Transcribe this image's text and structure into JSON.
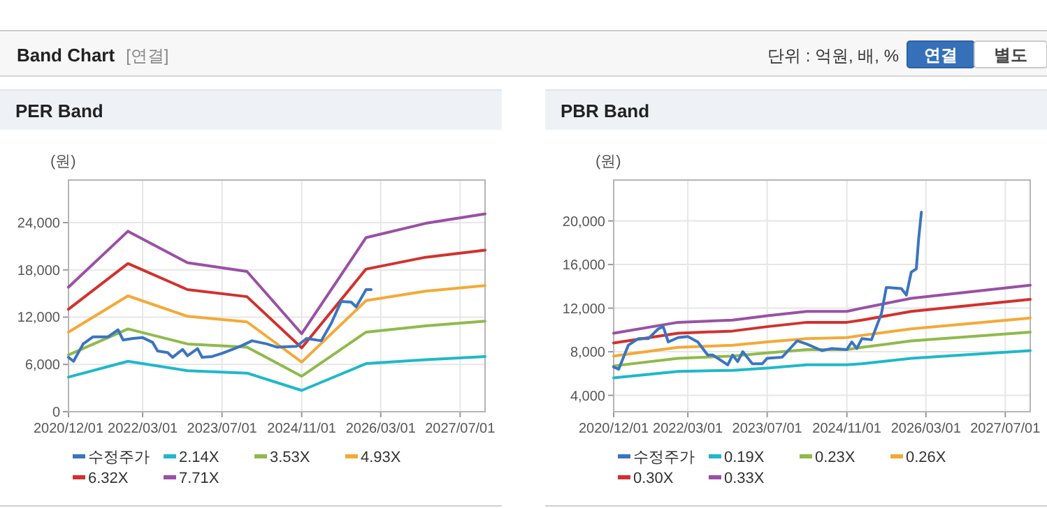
{
  "chart_data": [
    {
      "type": "other",
      "title": "Band Chart",
      "annotations": [
        "[연결]",
        "단위 : 억원, 배, %",
        "연결",
        "별도"
      ]
    },
    {
      "type": "line",
      "title": "PER Band",
      "ylabel": "(원)",
      "xlim": [
        "2020-12-01",
        "2027-12-01"
      ],
      "ylim": [
        0,
        29400
      ],
      "xticks": [
        {
          "value": "2020-12-01",
          "label": "2020/12/01"
        },
        {
          "value": "2022-03-01",
          "label": "2022/03/01"
        },
        {
          "value": "2023-07-01",
          "label": "2023/07/01"
        },
        {
          "value": "2024-11-01",
          "label": "2024/11/01"
        },
        {
          "value": "2026-03-01",
          "label": "2026/03/01"
        },
        {
          "value": "2027-07-01",
          "label": "2027/07/01"
        }
      ],
      "yticks": [
        0,
        {
          "value": 6000,
          "label": "6,000"
        },
        {
          "value": 12000,
          "label": "12,000"
        },
        {
          "value": 18000,
          "label": "18,000"
        },
        {
          "value": 24000,
          "label": "24,000"
        }
      ],
      "grid": true,
      "legend": "bottom",
      "series": [
        {
          "name": "수정주가",
          "color": "#3b74c2",
          "x": [
            "2020-12",
            "2021-01",
            "2021-03",
            "2021-05",
            "2021-08",
            "2021-10",
            "2021-11",
            "2022-01",
            "2022-03",
            "2022-05",
            "2022-06",
            "2022-08",
            "2022-09",
            "2022-11",
            "2022-12",
            "2023-02",
            "2023-03",
            "2023-05",
            "2023-07",
            "2023-09",
            "2023-11",
            "2024-01",
            "2024-04",
            "2024-06",
            "2024-10",
            "2024-12",
            "2025-03",
            "2025-05",
            "2025-07",
            "2025-09",
            "2025-10",
            "2025-12",
            "2026-01"
          ],
          "values": [
            6900,
            6400,
            8600,
            9500,
            9500,
            10400,
            9100,
            9300,
            9400,
            8800,
            7700,
            7500,
            6900,
            7900,
            7100,
            8000,
            6900,
            7000,
            7400,
            7900,
            8400,
            9000,
            8600,
            8200,
            8300,
            9300,
            9000,
            11200,
            14000,
            13900,
            13300,
            15500,
            15500
          ]
        },
        {
          "name": "2.14X",
          "color": "#1fb8c9",
          "x": [
            "2020-12",
            "2021-12",
            "2022-12",
            "2023-12",
            "2024-11",
            "2025-12",
            "2026-12",
            "2027-12"
          ],
          "values": [
            4400,
            6400,
            5200,
            4900,
            2700,
            6100,
            6600,
            7000
          ]
        },
        {
          "name": "3.53X",
          "color": "#8fba4b",
          "x": [
            "2020-12",
            "2021-12",
            "2022-12",
            "2023-12",
            "2024-11",
            "2025-12",
            "2026-12",
            "2027-12"
          ],
          "values": [
            7200,
            10500,
            8600,
            8200,
            4500,
            10100,
            10900,
            11500
          ]
        },
        {
          "name": "4.93X",
          "color": "#f4a937",
          "x": [
            "2020-12",
            "2021-12",
            "2022-12",
            "2023-12",
            "2024-11",
            "2025-12",
            "2026-12",
            "2027-12"
          ],
          "values": [
            10100,
            14700,
            12100,
            11400,
            6300,
            14100,
            15300,
            16000
          ]
        },
        {
          "name": "6.32X",
          "color": "#d2312e",
          "x": [
            "2020-12",
            "2021-12",
            "2022-12",
            "2023-12",
            "2024-11",
            "2025-12",
            "2026-12",
            "2027-12"
          ],
          "values": [
            13000,
            18800,
            15500,
            14600,
            8100,
            18100,
            19600,
            20500
          ]
        },
        {
          "name": "7.71X",
          "color": "#9a50a4",
          "x": [
            "2020-12",
            "2021-12",
            "2022-12",
            "2023-12",
            "2024-11",
            "2025-12",
            "2026-12",
            "2027-12"
          ],
          "values": [
            15800,
            22900,
            18900,
            17800,
            9900,
            22100,
            23900,
            25100
          ]
        }
      ]
    },
    {
      "type": "line",
      "title": "PBR Band",
      "ylabel": "(원)",
      "xlim": [
        "2020-12-01",
        "2027-12-01"
      ],
      "ylim": [
        2500,
        23750
      ],
      "xticks": [
        {
          "value": "2020-12-01",
          "label": "2020/12/01"
        },
        {
          "value": "2022-03-01",
          "label": "2022/03/01"
        },
        {
          "value": "2023-07-01",
          "label": "2023/07/01"
        },
        {
          "value": "2024-11-01",
          "label": "2024/11/01"
        },
        {
          "value": "2026-03-01",
          "label": "2026/03/01"
        },
        {
          "value": "2027-07-01",
          "label": "2027/07/01"
        }
      ],
      "yticks": [
        {
          "value": 4000,
          "label": "4,000"
        },
        {
          "value": 8000,
          "label": "8,000"
        },
        {
          "value": 12000,
          "label": "12,000"
        },
        {
          "value": 16000,
          "label": "16,000"
        },
        {
          "value": 20000,
          "label": "20,000"
        }
      ],
      "grid": true,
      "legend": "bottom",
      "series": [
        {
          "name": "수정주가",
          "color": "#3b74c2",
          "x": [
            "2020-12",
            "2021-01",
            "2021-03",
            "2021-05",
            "2021-07",
            "2021-09",
            "2021-10",
            "2021-11",
            "2022-01",
            "2022-03",
            "2022-05",
            "2022-07",
            "2022-08",
            "2022-11",
            "2022-12",
            "2023-01",
            "2023-02",
            "2023-04",
            "2023-06",
            "2023-07",
            "2023-10",
            "2023-12",
            "2024-01",
            "2024-03",
            "2024-06",
            "2024-08",
            "2024-11",
            "2024-12",
            "2025-01",
            "2025-02",
            "2025-04",
            "2025-06",
            "2025-07",
            "2025-10",
            "2025-11",
            "2025-12",
            "2026-01",
            "2026-01-15",
            "2026-02"
          ],
          "values": [
            6600,
            6400,
            8600,
            9200,
            9200,
            10100,
            10300,
            8900,
            9300,
            9400,
            8900,
            7700,
            7700,
            6800,
            7700,
            7100,
            8000,
            6900,
            6900,
            7400,
            7500,
            8500,
            9000,
            8700,
            8100,
            8300,
            8200,
            8900,
            8300,
            9200,
            9100,
            11500,
            13900,
            13800,
            13200,
            15300,
            15600,
            18300,
            20800
          ]
        },
        {
          "name": "0.19X",
          "color": "#1fb8c9",
          "x": [
            "2020-12",
            "2022-01",
            "2022-12",
            "2023-07",
            "2024-03",
            "2024-11",
            "2025-02",
            "2025-12",
            "2027-12"
          ],
          "values": [
            5600,
            6200,
            6300,
            6500,
            6800,
            6800,
            6900,
            7400,
            8100
          ]
        },
        {
          "name": "0.23X",
          "color": "#8fba4b",
          "x": [
            "2020-12",
            "2022-01",
            "2022-12",
            "2023-07",
            "2024-03",
            "2024-11",
            "2025-02",
            "2025-12",
            "2027-12"
          ],
          "values": [
            6700,
            7400,
            7600,
            7900,
            8200,
            8200,
            8400,
            9000,
            9800
          ]
        },
        {
          "name": "0.26X",
          "color": "#f4a937",
          "x": [
            "2020-12",
            "2022-01",
            "2022-12",
            "2023-07",
            "2024-03",
            "2024-11",
            "2025-02",
            "2025-12",
            "2027-12"
          ],
          "values": [
            7600,
            8400,
            8600,
            8900,
            9200,
            9300,
            9500,
            10100,
            11100
          ]
        },
        {
          "name": "0.30X",
          "color": "#d2312e",
          "x": [
            "2020-12",
            "2022-01",
            "2022-12",
            "2023-07",
            "2024-03",
            "2024-11",
            "2025-02",
            "2025-12",
            "2027-12"
          ],
          "values": [
            8800,
            9700,
            9900,
            10300,
            10700,
            10700,
            10900,
            11700,
            12800
          ]
        },
        {
          "name": "0.33X",
          "color": "#9a50a4",
          "x": [
            "2020-12",
            "2022-01",
            "2022-12",
            "2023-07",
            "2024-03",
            "2024-11",
            "2025-02",
            "2025-12",
            "2027-12"
          ],
          "values": [
            9700,
            10700,
            10900,
            11300,
            11700,
            11700,
            12000,
            12900,
            14100
          ]
        }
      ]
    }
  ]
}
